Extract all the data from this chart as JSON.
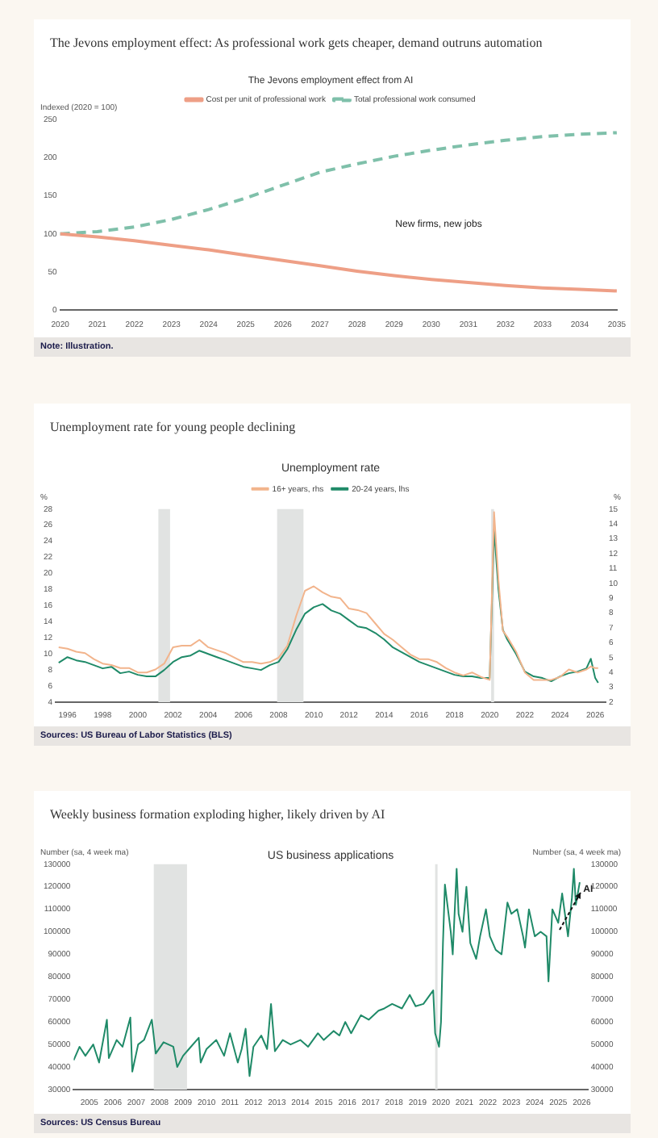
{
  "chart_data": [
    {
      "type": "line",
      "title": "The Jevons employment effect: As professional work gets cheaper, demand outruns automation",
      "subtitle": "The Jevons employment effect from AI",
      "ylabel": "Indexed (2020 = 100)",
      "categories": [
        "2020",
        "2021",
        "2022",
        "2023",
        "2024",
        "2025",
        "2026",
        "2027",
        "2028",
        "2029",
        "2030",
        "2031",
        "2032",
        "2033",
        "2034",
        "2035"
      ],
      "series": [
        {
          "name": "Cost per unit of professional work",
          "color": "#ee9f86",
          "line_style": "solid",
          "values": [
            100,
            96,
            91,
            85,
            79,
            72,
            65,
            58,
            51,
            45,
            40,
            36,
            32,
            29,
            27,
            25
          ]
        },
        {
          "name": "Total professional work consumed",
          "color": "#7fc0aa",
          "line_style": "dashed",
          "values": [
            100,
            103,
            109,
            119,
            132,
            147,
            164,
            181,
            192,
            202,
            210,
            217,
            223,
            228,
            231,
            233
          ]
        }
      ],
      "ylim": [
        0,
        250
      ],
      "yticks": [
        0,
        50,
        100,
        150,
        200,
        250
      ],
      "grid": false,
      "legend": "top",
      "marker": "none",
      "annotations": [
        "New firms, new jobs",
        "Note: Illustration."
      ]
    },
    {
      "type": "line",
      "title": "Unemployment rate for young people declining",
      "subtitle": "Unemployment rate",
      "ylabel": "%",
      "y2label": "%",
      "x": [
        "1995-07",
        "1996-01",
        "1996-07",
        "1997-01",
        "1997-07",
        "1998-01",
        "1998-07",
        "1999-01",
        "1999-07",
        "2000-01",
        "2000-07",
        "2001-01",
        "2001-07",
        "2002-01",
        "2002-07",
        "2003-01",
        "2003-07",
        "2004-01",
        "2004-07",
        "2005-01",
        "2005-07",
        "2006-01",
        "2006-07",
        "2007-01",
        "2007-07",
        "2008-01",
        "2008-07",
        "2009-01",
        "2009-07",
        "2010-01",
        "2010-07",
        "2011-01",
        "2011-07",
        "2012-01",
        "2012-07",
        "2013-01",
        "2013-07",
        "2014-01",
        "2014-07",
        "2015-01",
        "2015-07",
        "2016-01",
        "2016-07",
        "2017-01",
        "2017-07",
        "2018-01",
        "2018-07",
        "2019-01",
        "2019-07",
        "2020-01",
        "2020-04",
        "2020-07",
        "2020-10",
        "2021-01",
        "2021-07",
        "2022-01",
        "2022-07",
        "2023-01",
        "2023-07",
        "2024-01",
        "2024-07",
        "2025-01",
        "2025-07",
        "2025-10",
        "2026-01",
        "2026-03"
      ],
      "series": [
        {
          "name": "16+ years, rhs",
          "color": "#f2b48c",
          "axis": "y2",
          "values": [
            5.7,
            5.6,
            5.4,
            5.3,
            4.9,
            4.6,
            4.5,
            4.3,
            4.3,
            4.0,
            4.0,
            4.2,
            4.6,
            5.7,
            5.8,
            5.8,
            6.2,
            5.7,
            5.5,
            5.3,
            5.0,
            4.7,
            4.7,
            4.6,
            4.7,
            5.0,
            5.8,
            7.8,
            9.5,
            9.8,
            9.4,
            9.1,
            9.0,
            8.3,
            8.2,
            8.0,
            7.3,
            6.6,
            6.2,
            5.7,
            5.2,
            4.9,
            4.9,
            4.7,
            4.3,
            4.0,
            3.8,
            4.0,
            3.7,
            3.5,
            14.8,
            10.2,
            6.8,
            6.4,
            5.4,
            4.0,
            3.5,
            3.5,
            3.5,
            3.7,
            4.2,
            4.0,
            4.2,
            4.4,
            4.3,
            4.3
          ]
        },
        {
          "name": "20-24 years, lhs",
          "color": "#1f8a68",
          "values": [
            8.9,
            9.6,
            9.2,
            9.0,
            8.6,
            8.2,
            8.4,
            7.6,
            7.8,
            7.4,
            7.2,
            7.2,
            8.0,
            9.0,
            9.6,
            9.8,
            10.4,
            10.0,
            9.6,
            9.2,
            8.8,
            8.4,
            8.2,
            8.0,
            8.6,
            9.0,
            10.6,
            13.0,
            15.0,
            15.8,
            16.2,
            15.4,
            15.0,
            14.2,
            13.4,
            13.2,
            12.6,
            11.8,
            10.8,
            10.2,
            9.6,
            9.0,
            8.6,
            8.2,
            7.8,
            7.4,
            7.2,
            7.2,
            7.0,
            7.0,
            25.5,
            18.0,
            13.0,
            11.8,
            10.0,
            7.8,
            7.2,
            7.0,
            6.6,
            7.2,
            7.6,
            7.8,
            8.2,
            9.4,
            7.0,
            6.4
          ]
        }
      ],
      "xlim": [
        "1995-05",
        "2026-08"
      ],
      "xticks": [
        "1996",
        "1998",
        "2000",
        "2002",
        "2004",
        "2006",
        "2008",
        "2010",
        "2012",
        "2014",
        "2016",
        "2018",
        "2020",
        "2022",
        "2024",
        "2026"
      ],
      "ylim": [
        4,
        28
      ],
      "yticks": [
        4,
        6,
        8,
        10,
        12,
        14,
        16,
        18,
        20,
        22,
        24,
        26,
        28
      ],
      "y2lim": [
        2,
        15
      ],
      "y2ticks": [
        2,
        3,
        4,
        5,
        6,
        7,
        8,
        9,
        10,
        11,
        12,
        13,
        14,
        15
      ],
      "bands": [
        {
          "axis": "x",
          "from": "2001-03",
          "to": "2001-11",
          "color": "#e1e3e2"
        },
        {
          "axis": "x",
          "from": "2007-12",
          "to": "2009-06",
          "color": "#e1e3e2"
        },
        {
          "axis": "x",
          "from": "2020-02",
          "to": "2020-04",
          "color": "#e1e3e2"
        }
      ],
      "grid": false,
      "legend": "top",
      "marker": "none",
      "annotations": [
        "Sources: US Bureau of Labor Statistics (BLS)"
      ]
    },
    {
      "type": "line",
      "title": "Weekly business formation exploding higher, likely driven by AI",
      "subtitle": "US business applications",
      "ylabel": "Number (sa, 4 week ma)",
      "y2label": "Number (sa, 4 week ma)",
      "x": [
        "2004-05",
        "2004-08",
        "2004-11",
        "2005-03",
        "2005-06",
        "2005-10",
        "2005-11",
        "2006-03",
        "2006-06",
        "2006-10",
        "2006-11",
        "2007-02",
        "2007-05",
        "2007-09",
        "2007-11",
        "2008-03",
        "2008-08",
        "2008-10",
        "2009-01",
        "2009-04",
        "2009-09",
        "2009-10",
        "2010-01",
        "2010-06",
        "2010-10",
        "2011-01",
        "2011-05",
        "2011-07",
        "2011-09",
        "2011-11",
        "2012-01",
        "2012-05",
        "2012-08",
        "2012-10",
        "2012-12",
        "2013-04",
        "2013-08",
        "2014-01",
        "2014-05",
        "2014-10",
        "2015-01",
        "2015-06",
        "2015-09",
        "2015-12",
        "2016-03",
        "2016-08",
        "2016-12",
        "2017-05",
        "2017-08",
        "2017-12",
        "2018-05",
        "2018-09",
        "2018-12",
        "2019-04",
        "2019-09",
        "2019-10",
        "2019-12",
        "2020-01",
        "2020-02",
        "2020-03",
        "2020-06",
        "2020-07",
        "2020-09",
        "2020-10",
        "2020-12",
        "2021-02",
        "2021-04",
        "2021-07",
        "2021-09",
        "2021-12",
        "2022-02",
        "2022-05",
        "2022-08",
        "2022-11",
        "2023-01",
        "2023-04",
        "2023-07",
        "2023-08",
        "2023-10",
        "2024-01",
        "2024-04",
        "2024-07",
        "2024-08",
        "2024-10",
        "2025-01",
        "2025-03",
        "2025-06",
        "2025-08",
        "2025-09",
        "2025-10",
        "2025-12"
      ],
      "series": [
        {
          "color": "#1f8a68",
          "values": [
            43000,
            49000,
            45000,
            50000,
            42000,
            61000,
            44000,
            52000,
            49000,
            62000,
            38000,
            50000,
            52000,
            61000,
            46000,
            51000,
            49000,
            40000,
            45000,
            48000,
            53000,
            42000,
            48000,
            52000,
            45000,
            55000,
            42000,
            48000,
            57000,
            36000,
            49000,
            54000,
            48000,
            68000,
            47000,
            52000,
            50000,
            52000,
            49000,
            55000,
            52000,
            56000,
            54000,
            60000,
            55000,
            63000,
            61000,
            65000,
            66000,
            68000,
            66000,
            72000,
            67000,
            68000,
            74000,
            55000,
            49000,
            60000,
            95000,
            121000,
            100000,
            90000,
            128000,
            108000,
            100000,
            120000,
            95000,
            88000,
            98000,
            110000,
            98000,
            92000,
            90000,
            113000,
            108000,
            110000,
            98000,
            93000,
            110000,
            98000,
            100000,
            98000,
            78000,
            110000,
            104000,
            117000,
            98000,
            115000,
            128000,
            112000,
            122000
          ]
        }
      ],
      "xlim": [
        "2004-05",
        "2026-04"
      ],
      "xticks": [
        "2005",
        "2006",
        "2007",
        "2008",
        "2009",
        "2010",
        "2011",
        "2012",
        "2013",
        "2014",
        "2015",
        "2016",
        "2017",
        "2018",
        "2019",
        "2020",
        "2021",
        "2022",
        "2023",
        "2024",
        "2025",
        "2026"
      ],
      "ylim": [
        30000,
        130000
      ],
      "yticks": [
        30000,
        40000,
        50000,
        60000,
        70000,
        80000,
        90000,
        100000,
        110000,
        120000,
        130000
      ],
      "y2lim": [
        30000,
        130000
      ],
      "y2ticks": [
        30000,
        40000,
        50000,
        60000,
        70000,
        80000,
        90000,
        100000,
        110000,
        120000,
        130000
      ],
      "bands": [
        {
          "axis": "x",
          "from": "2007-10",
          "to": "2009-03",
          "color": "#e1e3e2"
        },
        {
          "axis": "x",
          "from": "2019-10",
          "to": "2019-11",
          "color": "#e1e3e2"
        }
      ],
      "grid": false,
      "legend": false,
      "marker": "none",
      "annotations": [
        {
          "text": "AI",
          "x": "2026-01",
          "y": 119000
        },
        "Sources: US Census Bureau"
      ]
    }
  ]
}
